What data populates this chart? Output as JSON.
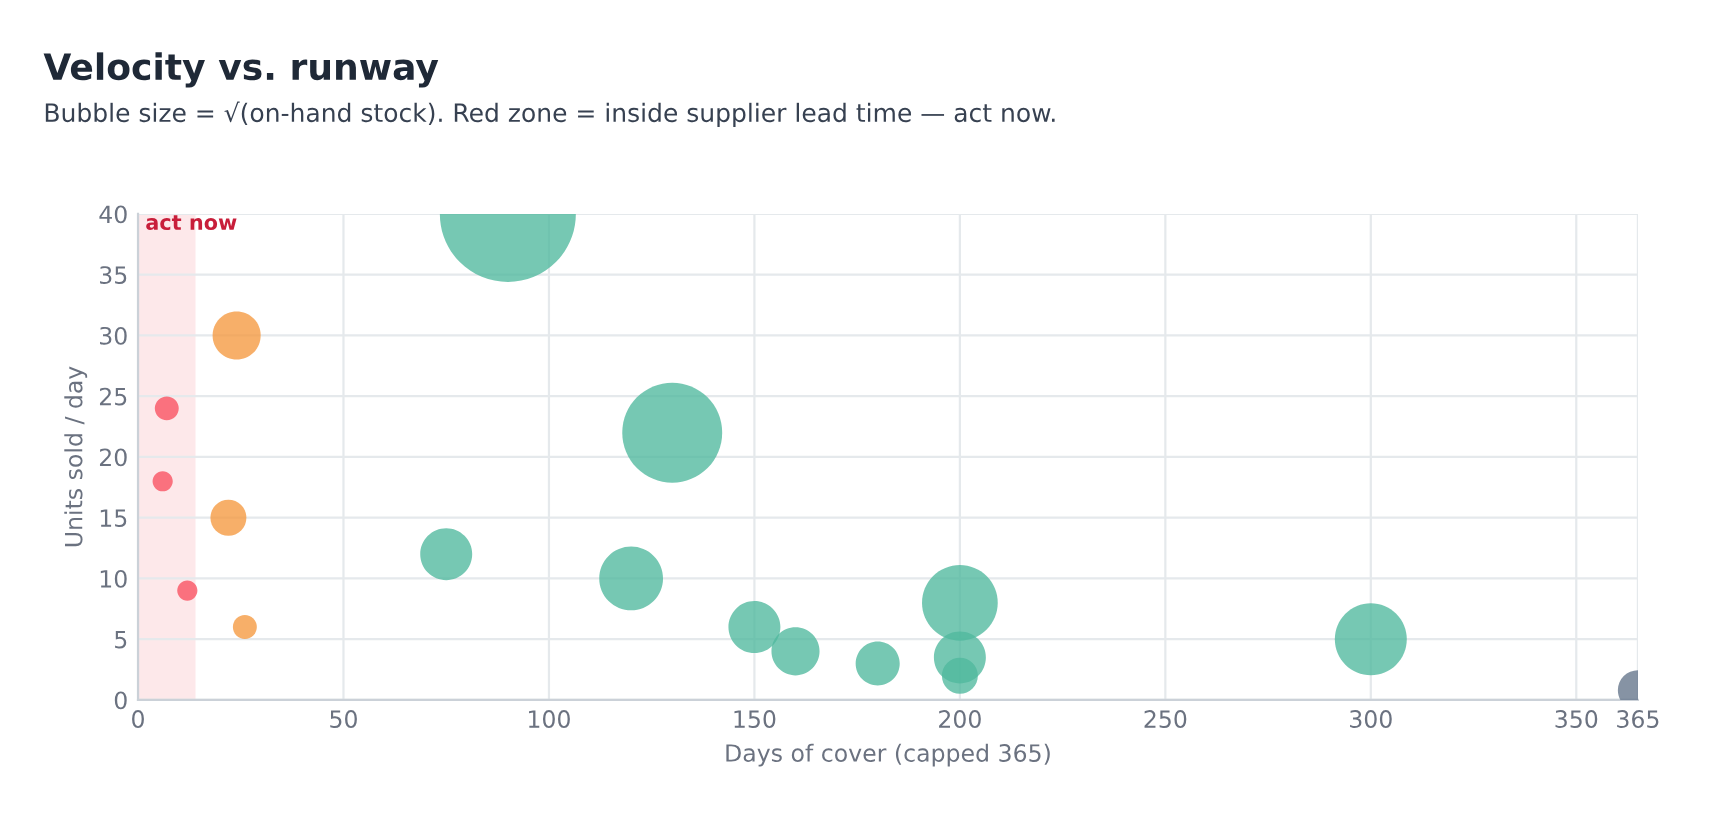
{
  "chart_data": {
    "type": "bubble",
    "title": "Velocity vs. runway",
    "subtitle": "Bubble size = √(on-hand stock). Red zone = inside supplier lead time — act now.",
    "xlabel": "Days of cover (capped 365)",
    "ylabel": "Units sold / day",
    "series": [
      {
        "color": "#f8505f",
        "x": [
          7,
          6,
          12
        ],
        "values": [
          24,
          18,
          9
        ],
        "sizes": [
          0.031,
          0.022,
          0.022
        ]
      },
      {
        "color": "#f5983f",
        "x": [
          24,
          22,
          26
        ],
        "values": [
          30,
          15,
          6
        ],
        "sizes": [
          0.125,
          0.07,
          0.031
        ]
      },
      {
        "color": "#4fb89e",
        "x": [
          90,
          130,
          75,
          120,
          150,
          160,
          180,
          200,
          200,
          200,
          300
        ],
        "values": [
          40,
          22,
          12,
          10,
          6,
          4,
          3,
          8,
          3.5,
          2,
          5
        ],
        "sizes": [
          1,
          0.54,
          0.146,
          0.22,
          0.146,
          0.125,
          0.105,
          0.31,
          0.146,
          0.07,
          0.28
        ]
      },
      {
        "color": "#64748b",
        "x": [
          365
        ],
        "values": [
          0.8
        ],
        "sizes": [
          0.087
        ]
      }
    ],
    "bands": [
      {
        "axis": "x",
        "from": 0,
        "to": 14,
        "label": "act now",
        "color": "#fde8ea"
      }
    ],
    "xlim": [
      0,
      365
    ],
    "ylim": [
      0,
      40
    ],
    "xticks": [
      0,
      50,
      100,
      150,
      200,
      250,
      300,
      350,
      365
    ],
    "yticks": [
      0,
      5,
      10,
      15,
      20,
      25,
      30,
      35,
      40
    ],
    "grid": true
  }
}
